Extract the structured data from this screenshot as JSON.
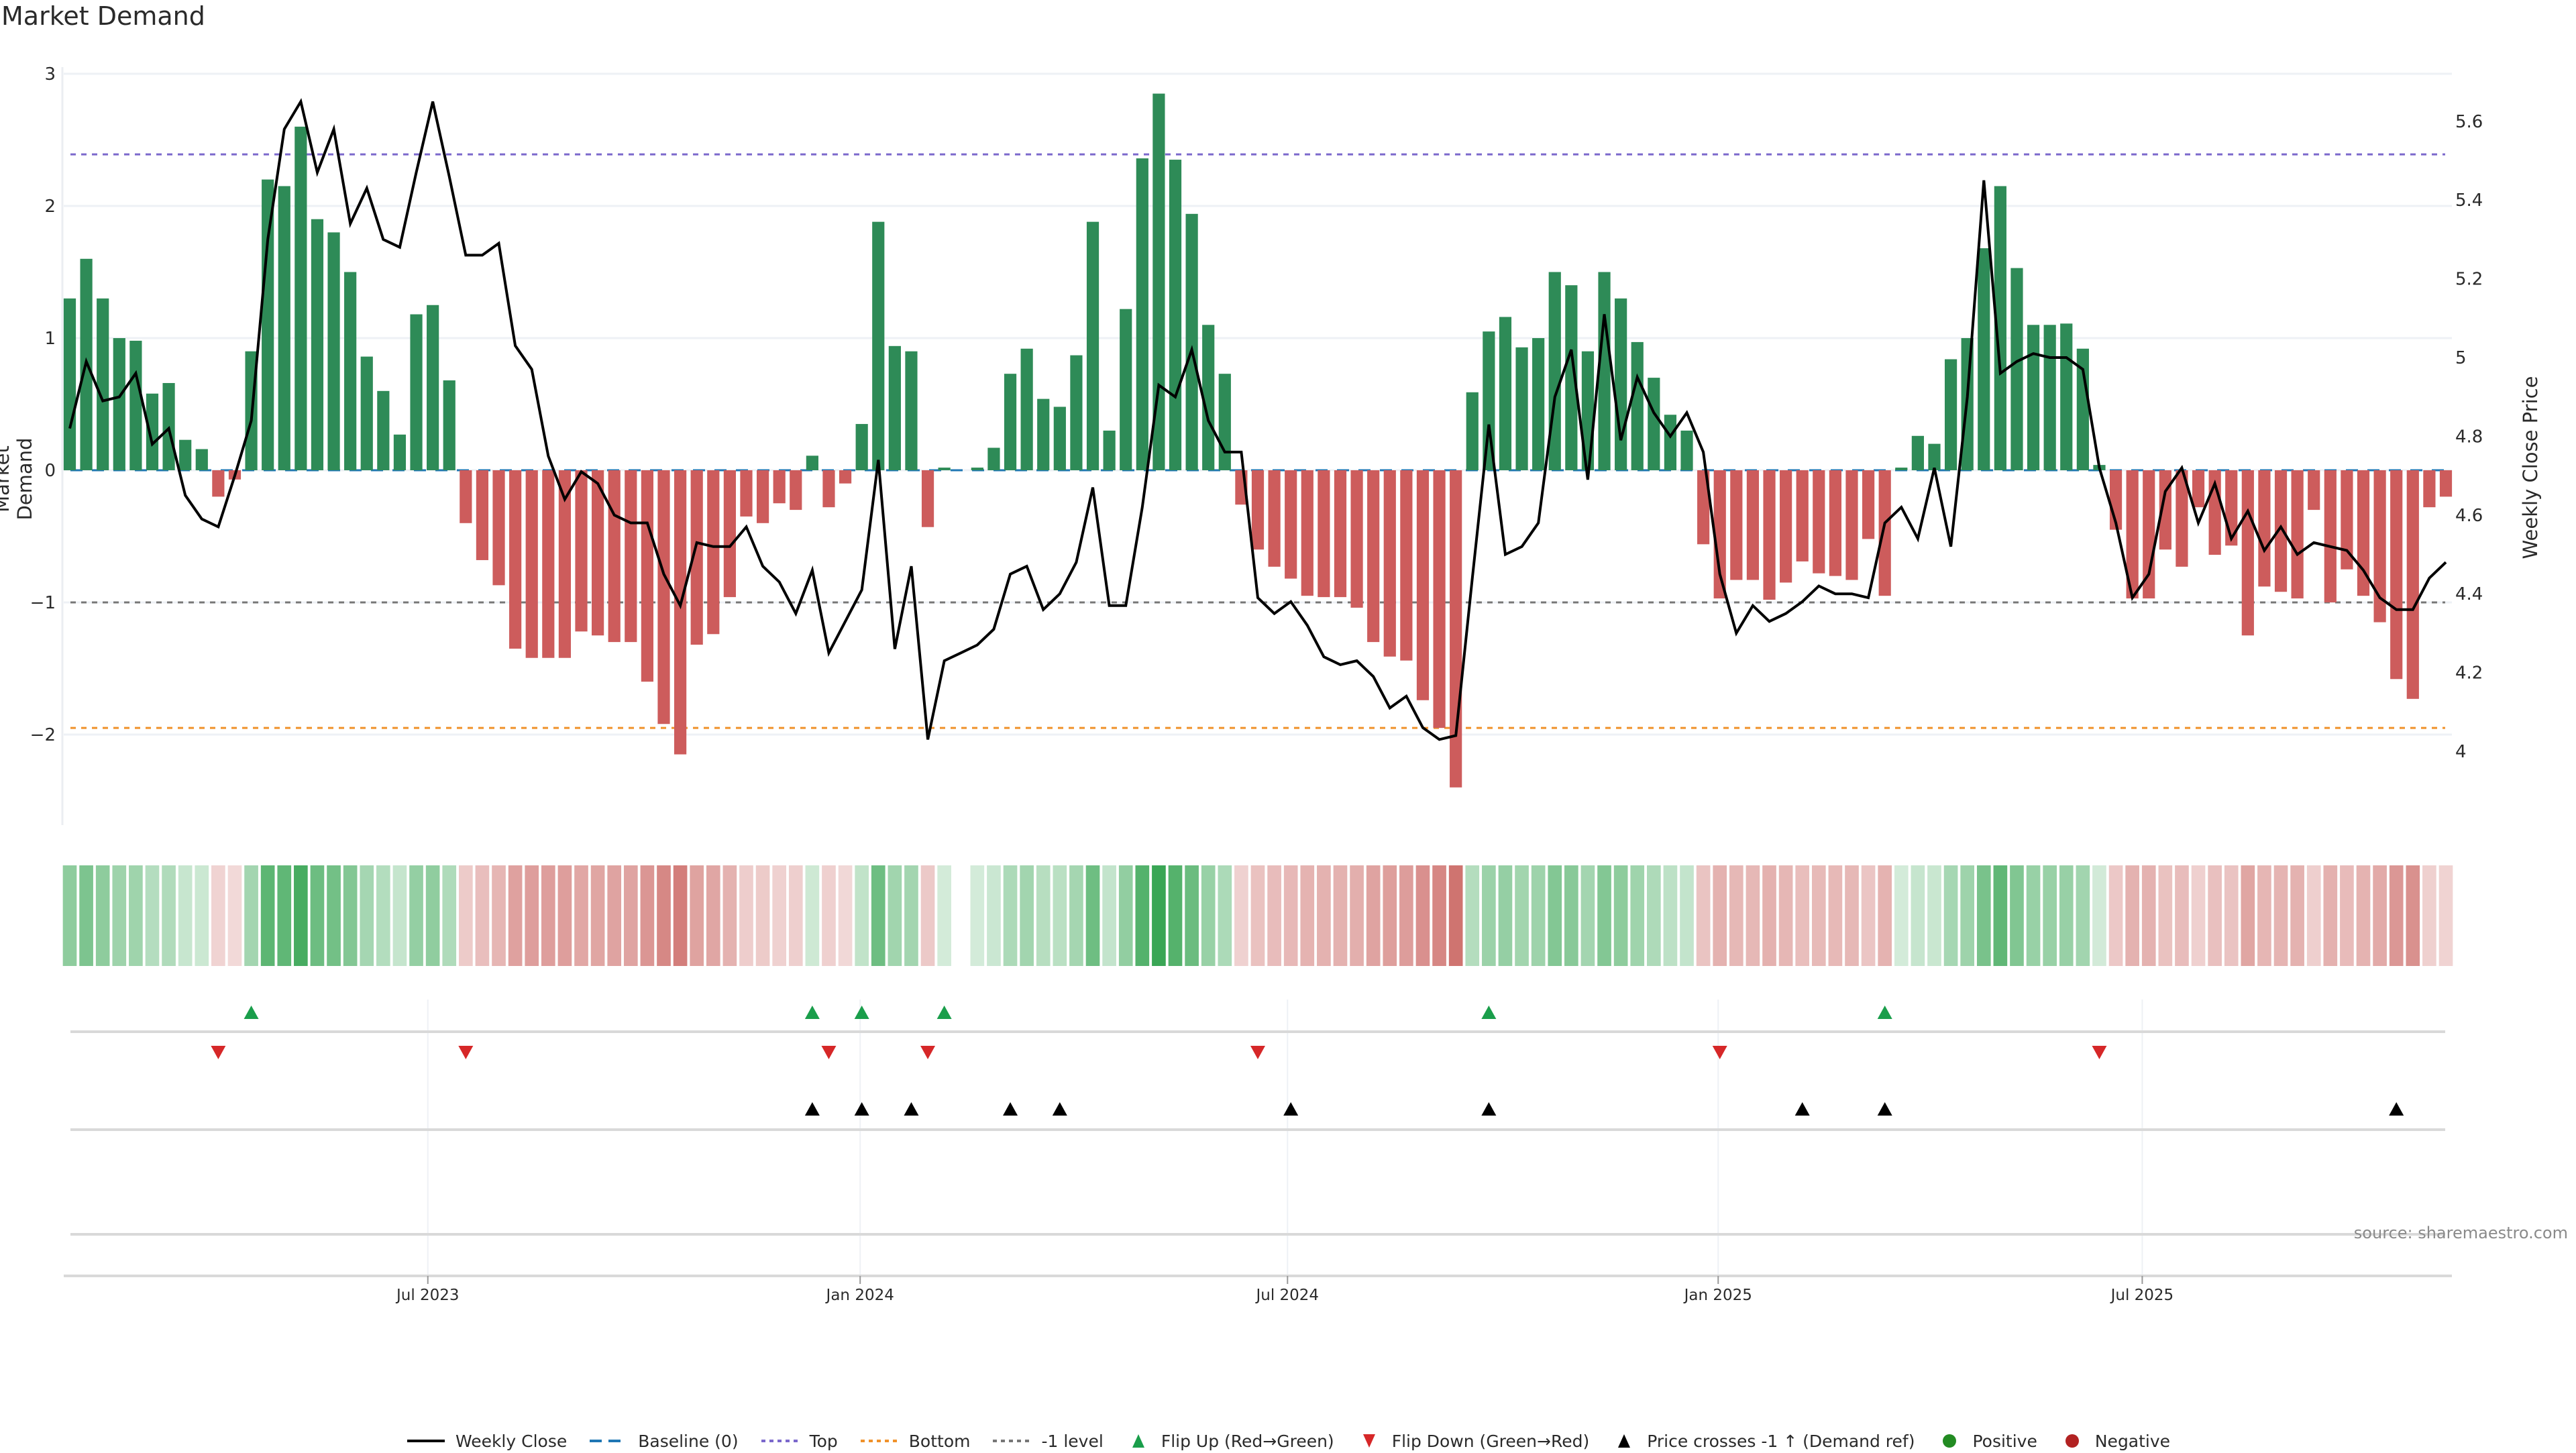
{
  "chart_data": {
    "type": "bar",
    "title": "Market Demand",
    "ylabel": "Market Demand",
    "y2label": "Weekly Close Price",
    "ylim": [
      -2.7,
      3.0
    ],
    "y2lim": [
      3.83,
      5.72
    ],
    "yticks": [
      "3",
      "2",
      "1",
      "0",
      "−1",
      "−2"
    ],
    "ytick_values": [
      3,
      2,
      1,
      0,
      -1,
      -2
    ],
    "y2ticks": [
      "5.6",
      "5.4",
      "5.2",
      "5",
      "4.8",
      "4.6",
      "4.4",
      "4.2",
      "4"
    ],
    "y2tick_values": [
      5.6,
      5.4,
      5.2,
      5.0,
      4.8,
      4.6,
      4.4,
      4.2,
      4.0
    ],
    "xticks": [
      "Jul 2023",
      "Jan 2024",
      "Jul 2024",
      "Jan 2025",
      "Jul 2025"
    ],
    "xtick_week_index": [
      21.7,
      47.9,
      73.8,
      99.9,
      125.6
    ],
    "reference_lines": {
      "top": 2.39,
      "bottom": -1.95,
      "minus_one": -1,
      "baseline": 0
    },
    "demand": [
      1.3,
      1.6,
      1.3,
      1.0,
      0.98,
      0.58,
      0.66,
      0.23,
      0.16,
      -0.2,
      -0.07,
      0.9,
      2.2,
      2.15,
      2.6,
      1.9,
      1.8,
      1.5,
      0.86,
      0.6,
      0.27,
      1.18,
      1.25,
      0.68,
      -0.4,
      -0.68,
      -0.87,
      -1.35,
      -1.42,
      -1.42,
      -1.42,
      -1.22,
      -1.25,
      -1.3,
      -1.3,
      -1.6,
      -1.92,
      -2.15,
      -1.32,
      -1.24,
      -0.96,
      -0.35,
      -0.4,
      -0.25,
      -0.3,
      0.11,
      -0.28,
      -0.1,
      0.35,
      1.88,
      0.94,
      0.9,
      -0.43,
      0.02,
      0,
      0.02,
      0.17,
      0.73,
      0.92,
      0.54,
      0.48,
      0.87,
      1.88,
      0.3,
      1.22,
      2.36,
      2.85,
      2.35,
      1.94,
      1.1,
      0.73,
      -0.26,
      -0.6,
      -0.73,
      -0.82,
      -0.95,
      -0.96,
      -0.96,
      -1.04,
      -1.3,
      -1.41,
      -1.44,
      -1.74,
      -1.95,
      -2.4,
      0.59,
      1.05,
      1.16,
      0.93,
      1.0,
      1.5,
      1.4,
      0.9,
      1.5,
      1.3,
      0.97,
      0.7,
      0.42,
      0.3,
      -0.56,
      -0.97,
      -0.83,
      -0.83,
      -0.98,
      -0.85,
      -0.69,
      -0.78,
      -0.8,
      -0.83,
      -0.52,
      -0.95,
      0.02,
      0.26,
      0.2,
      0.84,
      1.0,
      1.68,
      2.15,
      1.53,
      1.1,
      1.1,
      1.11,
      0.92,
      0.04,
      -0.45,
      -0.97,
      -0.97,
      -0.6,
      -0.73,
      -0.28,
      -0.64,
      -0.57,
      -1.25,
      -0.88,
      -0.92,
      -0.97,
      -0.3,
      -1.0,
      -0.75,
      -0.95,
      -1.15,
      -1.58,
      -1.73,
      -0.28,
      -0.2
    ],
    "weekly_close": [
      4.82,
      4.99,
      4.89,
      4.9,
      4.96,
      4.78,
      4.82,
      4.65,
      4.59,
      4.57,
      4.7,
      4.84,
      5.3,
      5.58,
      5.65,
      5.47,
      5.58,
      5.34,
      5.43,
      5.3,
      5.28,
      5.47,
      5.65,
      5.46,
      5.26,
      5.26,
      5.29,
      5.03,
      4.97,
      4.75,
      4.64,
      4.71,
      4.68,
      4.6,
      4.58,
      4.58,
      4.45,
      4.37,
      4.53,
      4.52,
      4.52,
      4.57,
      4.47,
      4.43,
      4.35,
      4.46,
      4.25,
      4.33,
      4.41,
      4.74,
      4.26,
      4.47,
      4.03,
      4.23,
      4.25,
      4.27,
      4.31,
      4.45,
      4.47,
      4.36,
      4.4,
      4.48,
      4.67,
      4.37,
      4.37,
      4.62,
      4.93,
      4.9,
      5.02,
      4.84,
      4.76,
      4.76,
      4.39,
      4.35,
      4.38,
      4.32,
      4.24,
      4.22,
      4.23,
      4.19,
      4.11,
      4.14,
      4.06,
      4.03,
      4.04,
      4.44,
      4.83,
      4.5,
      4.52,
      4.58,
      4.9,
      5.02,
      4.69,
      5.11,
      4.79,
      4.95,
      4.86,
      4.8,
      4.86,
      4.76,
      4.45,
      4.3,
      4.37,
      4.33,
      4.35,
      4.38,
      4.42,
      4.4,
      4.4,
      4.39,
      4.58,
      4.62,
      4.54,
      4.72,
      4.52,
      4.9,
      5.45,
      4.96,
      4.99,
      5.01,
      5.0,
      5.0,
      4.97,
      4.72,
      4.58,
      4.39,
      4.45,
      4.66,
      4.72,
      4.58,
      4.68,
      4.54,
      4.61,
      4.51,
      4.57,
      4.5,
      4.53,
      4.52,
      4.51,
      4.46,
      4.39,
      4.36,
      4.36,
      4.44,
      4.48
    ]
  },
  "markers": {
    "flip_up_week_index": [
      11,
      45,
      48,
      53,
      86,
      110
    ],
    "flip_down_week_index": [
      9,
      24,
      46,
      52,
      72,
      100,
      123
    ],
    "price_cross_week_index": [
      45,
      48,
      51,
      57,
      60,
      74,
      86,
      105,
      110,
      141
    ]
  },
  "legend": [
    {
      "label": "Weekly Close",
      "symbol": "solid-line",
      "color": "#000000"
    },
    {
      "label": "Baseline (0)",
      "symbol": "dashed-line",
      "color": "#1f77b4"
    },
    {
      "label": "Top",
      "symbol": "dotted-line",
      "color": "#7b68cc"
    },
    {
      "label": "Bottom",
      "symbol": "dotted-line",
      "color": "#f0922b"
    },
    {
      "label": "-1 level",
      "symbol": "dotted-line",
      "color": "#777777"
    },
    {
      "label": "Flip Up (Red→Green)",
      "symbol": "triangle-up",
      "color": "#1a9e4b"
    },
    {
      "label": "Flip Down (Green→Red)",
      "symbol": "triangle-down",
      "color": "#d62728"
    },
    {
      "label": "Price crosses -1 ↑ (Demand ref)",
      "symbol": "triangle-up",
      "color": "#000000"
    },
    {
      "label": "Positive",
      "symbol": "circle",
      "color": "#228b22"
    },
    {
      "label": "Negative",
      "symbol": "circle",
      "color": "#b22222"
    }
  ],
  "colors": {
    "positive_bar": "#2e8b57",
    "negative_bar": "#cd5c5c",
    "heat_pos": "#3aa655",
    "heat_neg": "#c8605c"
  },
  "source": "source: sharemaestro.com"
}
